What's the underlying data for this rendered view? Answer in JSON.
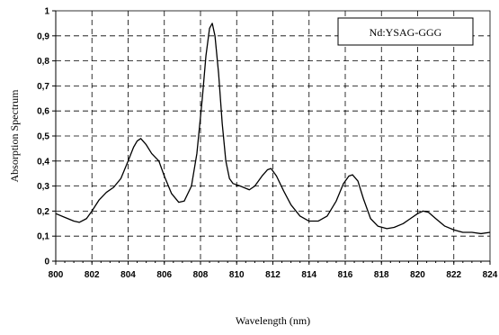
{
  "chart_data": {
    "type": "line",
    "title": "",
    "xlabel": "Wavelength (nm)",
    "ylabel": "Absorption Spectrum",
    "xlim": [
      800,
      824
    ],
    "ylim": [
      0,
      1
    ],
    "x_ticks": [
      "800",
      "802",
      "804",
      "806",
      "808",
      "810",
      "812",
      "814",
      "816",
      "818",
      "820",
      "822",
      "824"
    ],
    "y_ticks": [
      "0",
      "0,1",
      "0,2",
      "0,3",
      "0,4",
      "0,5",
      "0,6",
      "0,7",
      "0,8",
      "0,9",
      "1"
    ],
    "grid": true,
    "legend_position": "top-right",
    "series": [
      {
        "name": "Nd:YSAG-GGG",
        "x": [
          800.0,
          800.5,
          801.0,
          801.3,
          801.7,
          802.0,
          802.4,
          802.8,
          803.2,
          803.6,
          804.0,
          804.3,
          804.5,
          804.7,
          805.0,
          805.3,
          805.7,
          806.0,
          806.4,
          806.8,
          807.1,
          807.5,
          807.8,
          808.1,
          808.3,
          808.5,
          808.65,
          808.8,
          809.0,
          809.2,
          809.4,
          809.6,
          809.8,
          810.2,
          810.7,
          811.0,
          811.4,
          811.7,
          811.9,
          812.2,
          812.6,
          813.0,
          813.5,
          814.0,
          814.5,
          815.0,
          815.5,
          815.9,
          816.2,
          816.4,
          816.7,
          817.0,
          817.4,
          817.8,
          818.3,
          818.7,
          819.2,
          819.6,
          820.0,
          820.3,
          820.6,
          821.0,
          821.5,
          822.0,
          822.5,
          823.0,
          823.5,
          824.0
        ],
        "values": [
          0.19,
          0.175,
          0.16,
          0.155,
          0.17,
          0.2,
          0.245,
          0.275,
          0.295,
          0.33,
          0.4,
          0.455,
          0.48,
          0.49,
          0.465,
          0.43,
          0.4,
          0.34,
          0.27,
          0.235,
          0.24,
          0.3,
          0.43,
          0.65,
          0.82,
          0.93,
          0.95,
          0.9,
          0.75,
          0.55,
          0.4,
          0.33,
          0.31,
          0.3,
          0.285,
          0.3,
          0.34,
          0.365,
          0.37,
          0.34,
          0.28,
          0.225,
          0.18,
          0.16,
          0.16,
          0.18,
          0.24,
          0.31,
          0.34,
          0.345,
          0.32,
          0.25,
          0.17,
          0.14,
          0.13,
          0.135,
          0.15,
          0.17,
          0.19,
          0.2,
          0.195,
          0.17,
          0.14,
          0.125,
          0.115,
          0.115,
          0.11,
          0.115
        ]
      }
    ]
  }
}
